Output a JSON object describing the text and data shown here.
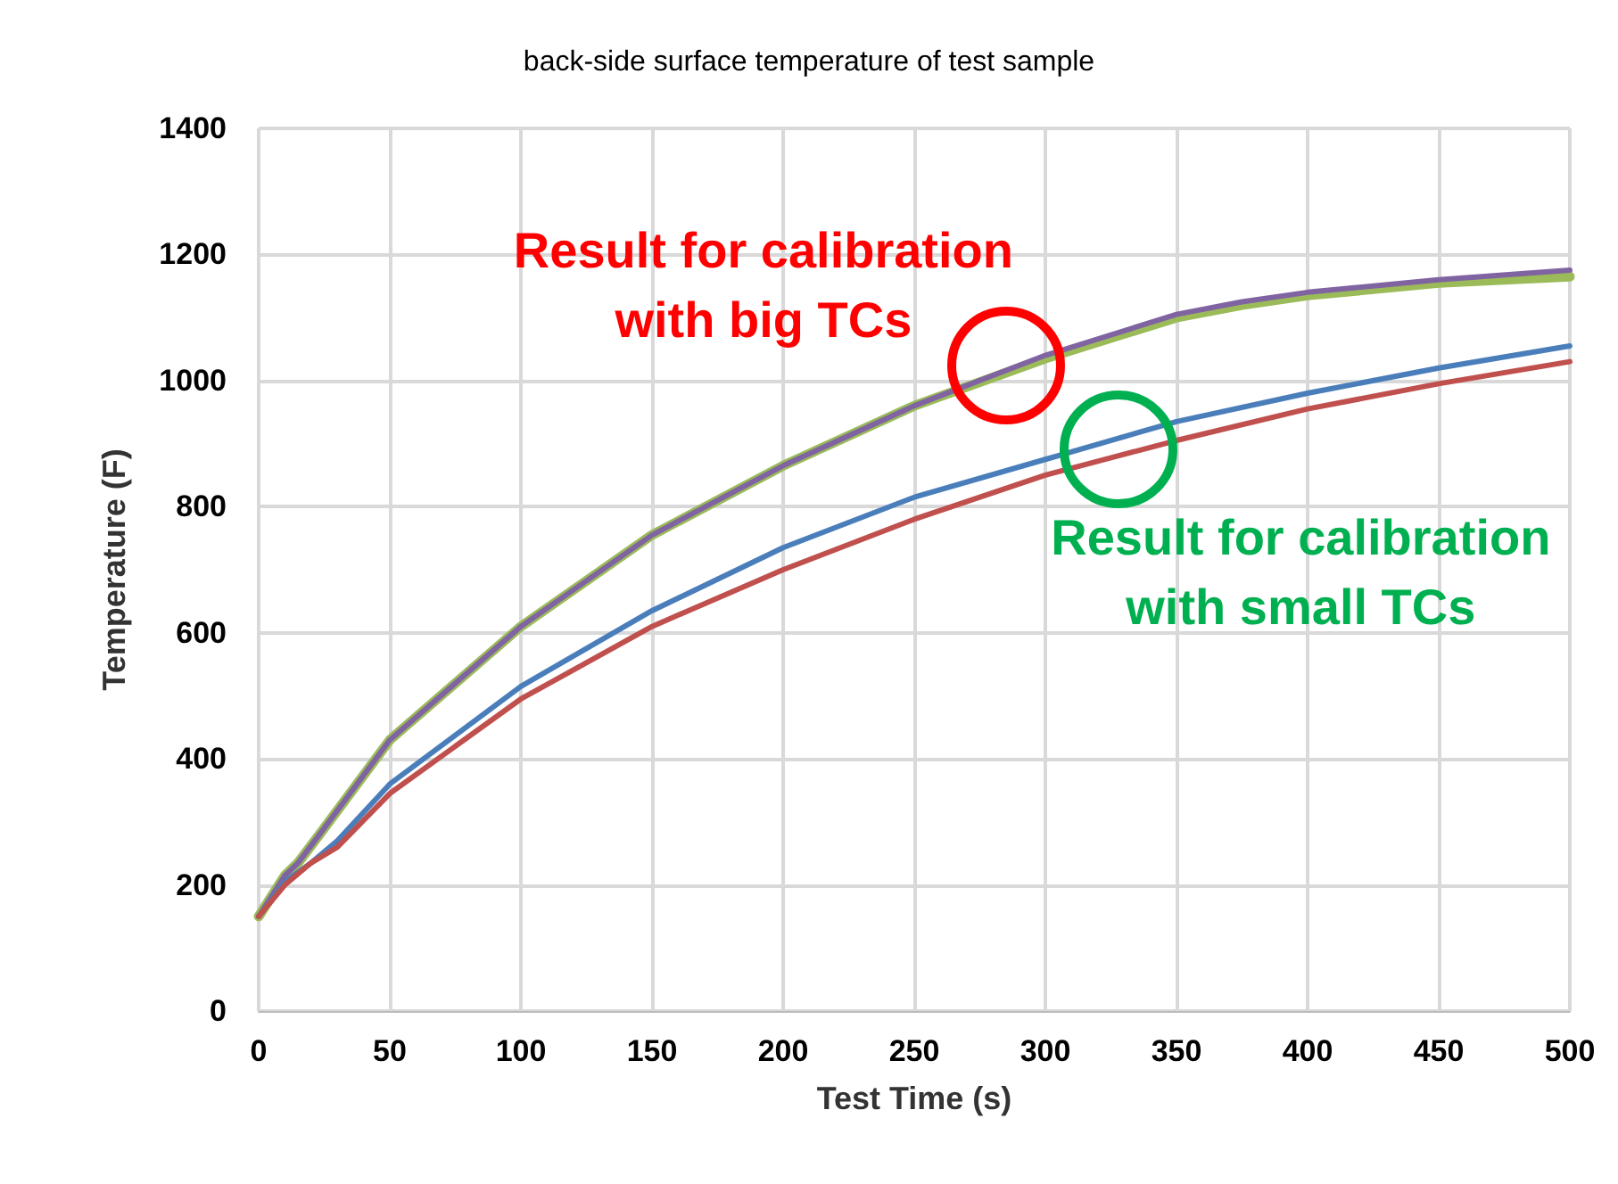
{
  "chart_data": {
    "type": "line",
    "title": "back-side surface temperature of test sample",
    "xlabel": "Test Time (s)",
    "ylabel": "Temperature (F)",
    "xlim": [
      0,
      500
    ],
    "xticks": [
      0,
      50,
      100,
      150,
      200,
      250,
      300,
      350,
      400,
      450,
      500
    ],
    "ylim": [
      0,
      1400
    ],
    "yticks": [
      0,
      200,
      400,
      600,
      800,
      1000,
      1200,
      1400
    ],
    "grid": true,
    "marker": "none",
    "line_style": "solid",
    "series": [
      {
        "color": "#9bbb59",
        "x": [
          0,
          10,
          15,
          25,
          50,
          100,
          150,
          200,
          250,
          300,
          350,
          375,
          400,
          450,
          500
        ],
        "values": [
          150,
          215,
          235,
          290,
          430,
          610,
          755,
          865,
          960,
          1035,
          1100,
          1120,
          1135,
          1155,
          1165
        ]
      },
      {
        "color": "#8064a2",
        "x": [
          0,
          10,
          15,
          25,
          50,
          100,
          150,
          200,
          250,
          300,
          350,
          375,
          400,
          450,
          500
        ],
        "values": [
          150,
          215,
          235,
          290,
          430,
          610,
          755,
          865,
          960,
          1040,
          1105,
          1125,
          1140,
          1160,
          1175
        ]
      },
      {
        "color": "#4a7ebb",
        "x": [
          0,
          10,
          20,
          30,
          50,
          100,
          150,
          200,
          250,
          300,
          350,
          400,
          450,
          500
        ],
        "values": [
          150,
          205,
          235,
          270,
          360,
          515,
          635,
          735,
          815,
          875,
          935,
          980,
          1020,
          1055
        ]
      },
      {
        "color": "#c0504d",
        "x": [
          0,
          10,
          20,
          30,
          50,
          100,
          150,
          200,
          250,
          300,
          350,
          400,
          450,
          500
        ],
        "values": [
          150,
          200,
          235,
          260,
          345,
          495,
          610,
          700,
          780,
          850,
          905,
          955,
          995,
          1030
        ]
      }
    ],
    "annotations": [
      {
        "text": "Result for calibration\nwith big TCs",
        "x": 285,
        "y": 1024
      },
      {
        "text": "Result for calibration\nwith small TCs",
        "x": 328,
        "y": 891
      }
    ]
  }
}
